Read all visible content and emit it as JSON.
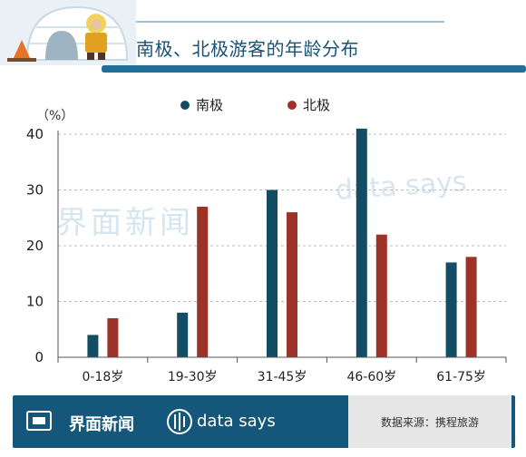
{
  "title": "南极、北极游客的年龄分布",
  "watermark": {
    "brand": "界面新闻",
    "tagline": "data says"
  },
  "footer": {
    "brand": "界面新闻",
    "tagline": "data says",
    "source": "数据来源：携程旅游"
  },
  "colors": {
    "south": "#124d63",
    "north": "#9c3228",
    "accent": "#1a5276"
  },
  "chart_data": {
    "type": "bar",
    "ylabel": "（%）",
    "ylim": [
      0,
      40
    ],
    "yticks": [
      0,
      10,
      20,
      30,
      40
    ],
    "grid": true,
    "legend_position": "top-center",
    "categories": [
      "0-18岁",
      "19-30岁",
      "31-45岁",
      "46-60岁",
      "61-75岁"
    ],
    "series": [
      {
        "name": "南极",
        "color": "#124d63",
        "values": [
          4,
          8,
          30,
          41,
          17
        ]
      },
      {
        "name": "北极",
        "color": "#9c3228",
        "values": [
          7,
          27,
          26,
          22,
          18
        ]
      }
    ]
  }
}
